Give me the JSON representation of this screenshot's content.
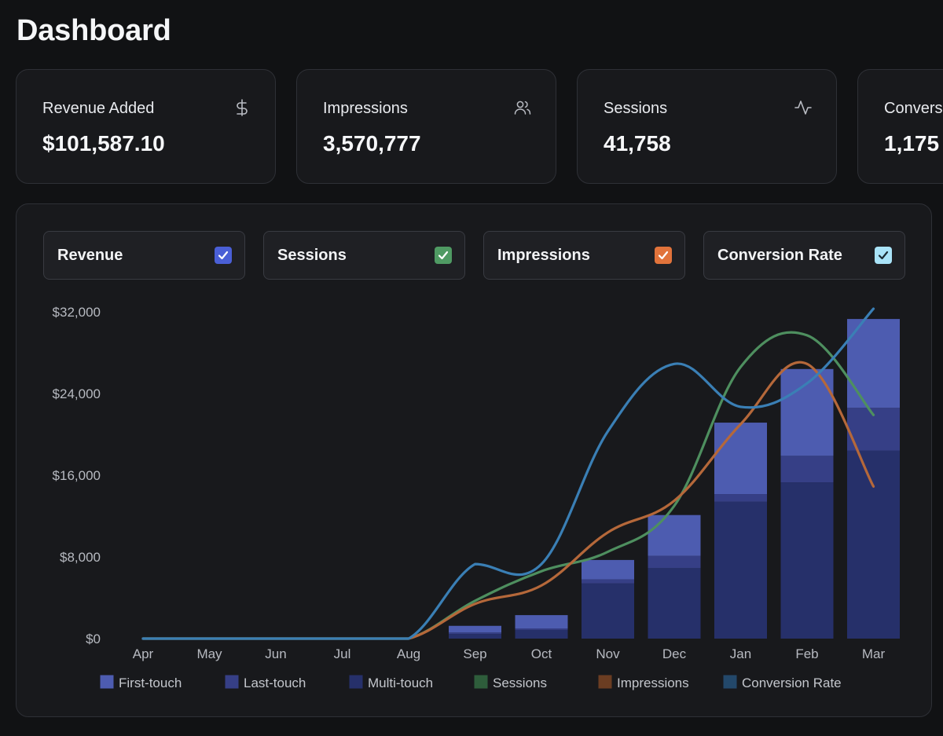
{
  "page": {
    "title": "Dashboard"
  },
  "kpis": [
    {
      "label": "Revenue Added",
      "value": "$101,587.10",
      "icon": "dollar-icon"
    },
    {
      "label": "Impressions",
      "value": "3,570,777",
      "icon": "users-icon"
    },
    {
      "label": "Sessions",
      "value": "41,758",
      "icon": "activity-icon"
    },
    {
      "label": "Conversions",
      "value": "1,175",
      "icon": "trend-icon"
    }
  ],
  "toggles": [
    {
      "label": "Revenue",
      "checked": true,
      "color": "#4a5fd6"
    },
    {
      "label": "Sessions",
      "checked": true,
      "color": "#4f9a63"
    },
    {
      "label": "Impressions",
      "checked": true,
      "color": "#e1733b"
    },
    {
      "label": "Conversion Rate",
      "checked": true,
      "color": "#a9e3f8"
    }
  ],
  "chart_data": {
    "type": "bar",
    "title": "",
    "categories": [
      "Apr",
      "May",
      "Jun",
      "Jul",
      "Aug",
      "Sep",
      "Oct",
      "Nov",
      "Dec",
      "Jan",
      "Feb",
      "Mar"
    ],
    "y_axis": {
      "min": 0,
      "max": 32000,
      "ticks": [
        0,
        8000,
        16000,
        24000,
        32000
      ],
      "tick_labels": [
        "$0",
        "$8,000",
        "$16,000",
        "$24,000",
        "$32,000"
      ]
    },
    "bar_series": [
      {
        "name": "Multi-touch",
        "color": "#26306a",
        "values": [
          0,
          0,
          0,
          0,
          0,
          450,
          850,
          5400,
          6900,
          13400,
          15300,
          18400
        ]
      },
      {
        "name": "Last-touch",
        "color": "#363f86",
        "values": [
          0,
          0,
          0,
          0,
          0,
          150,
          150,
          400,
          1200,
          750,
          2600,
          4200
        ]
      },
      {
        "name": "First-touch",
        "color": "#4d5cb0",
        "values": [
          0,
          0,
          0,
          0,
          0,
          650,
          1300,
          1900,
          4000,
          7000,
          8500,
          8700
        ]
      }
    ],
    "line_series": [
      {
        "name": "Sessions",
        "color": "#4e8f5f",
        "values": [
          0,
          0,
          0,
          0,
          0,
          3700,
          6600,
          8500,
          13000,
          26600,
          29700,
          21900
        ]
      },
      {
        "name": "Impressions",
        "color": "#b5683a",
        "values": [
          0,
          0,
          0,
          0,
          0,
          3400,
          5200,
          10400,
          13500,
          21000,
          26900,
          14900
        ]
      },
      {
        "name": "Conversion Rate",
        "color": "#3a7fb5",
        "values": [
          0,
          0,
          0,
          0,
          0,
          7300,
          7300,
          20300,
          26900,
          22700,
          25000,
          32300
        ]
      }
    ],
    "legend": [
      {
        "name": "First-touch",
        "color": "#4d5cb0"
      },
      {
        "name": "Last-touch",
        "color": "#363f86"
      },
      {
        "name": "Multi-touch",
        "color": "#26306a"
      },
      {
        "name": "Sessions",
        "color": "#2e5d3b"
      },
      {
        "name": "Impressions",
        "color": "#6b3d22"
      },
      {
        "name": "Conversion Rate",
        "color": "#23486a"
      }
    ]
  }
}
